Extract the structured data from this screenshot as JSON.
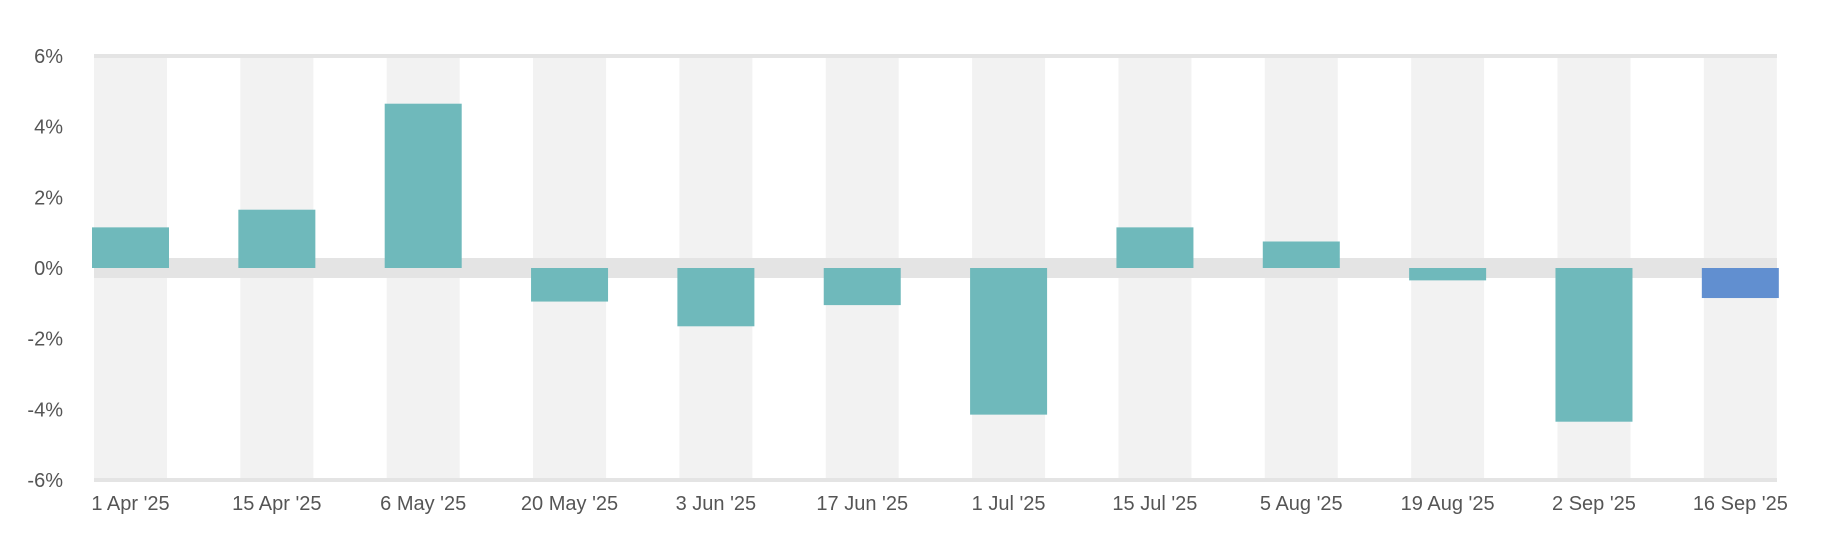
{
  "chart_data": {
    "type": "bar",
    "categories": [
      "1 Apr '25",
      "15 Apr '25",
      "6 May '25",
      "20 May '25",
      "3 Jun '25",
      "17 Jun '25",
      "1 Jul '25",
      "15 Jul '25",
      "5 Aug '25",
      "19 Aug '25",
      "2 Sep '25",
      "16 Sep '25"
    ],
    "values": [
      1.15,
      1.65,
      4.65,
      -0.95,
      -1.65,
      -1.05,
      -4.15,
      1.15,
      0.75,
      -0.35,
      -4.35,
      -0.85
    ],
    "y_ticks": [
      "6%",
      "4%",
      "2%",
      "0%",
      "-2%",
      "-4%",
      "-6%"
    ],
    "ylim": [
      -6,
      6
    ],
    "title": "",
    "xlabel": "",
    "ylabel": "",
    "grid": "alternating vertical bands",
    "legend": "none",
    "colors": {
      "bar": "#6fb9bb",
      "bar_last": "#618fd0",
      "band": "#f2f2f2",
      "zero_band": "#e4e4e4",
      "frame": "#e4e4e4"
    }
  }
}
